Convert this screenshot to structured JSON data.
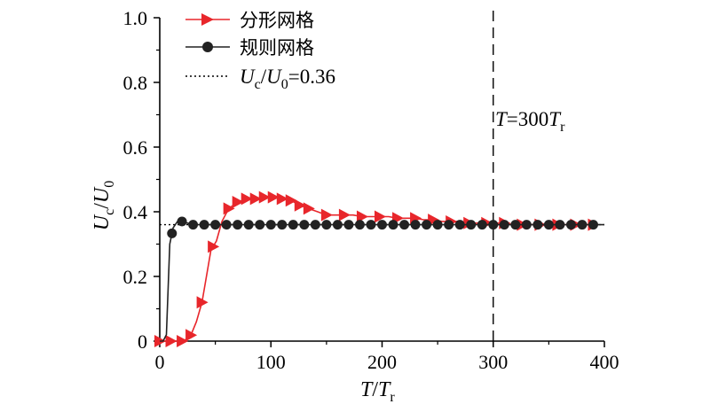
{
  "chart_data": {
    "type": "line",
    "xlabel": "T/T_r",
    "ylabel": "U_c/U_0",
    "xlim": [
      0,
      400
    ],
    "ylim": [
      0,
      1.0
    ],
    "x_ticks": [
      "0",
      "100",
      "200",
      "300",
      "400"
    ],
    "y_ticks": [
      "0",
      "0.2",
      "0.4",
      "0.6",
      "0.8",
      "1.0"
    ],
    "grid": false,
    "legend_position": "top-left",
    "series": [
      {
        "name": "分形网格",
        "color": "#e8262b",
        "marker": "triangle-right",
        "points": [
          [
            0,
            0
          ],
          [
            10,
            0
          ],
          [
            20,
            0
          ],
          [
            27,
            0.01
          ],
          [
            33,
            0.06
          ],
          [
            38,
            0.12
          ],
          [
            42,
            0.2
          ],
          [
            46,
            0.28
          ],
          [
            51,
            0.31
          ],
          [
            56,
            0.37
          ],
          [
            62,
            0.41
          ],
          [
            70,
            0.43
          ],
          [
            78,
            0.44
          ],
          [
            86,
            0.44
          ],
          [
            94,
            0.445
          ],
          [
            102,
            0.445
          ],
          [
            110,
            0.44
          ],
          [
            118,
            0.435
          ],
          [
            126,
            0.42
          ],
          [
            134,
            0.41
          ],
          [
            142,
            0.4
          ],
          [
            150,
            0.39
          ],
          [
            158,
            0.39
          ],
          [
            166,
            0.39
          ],
          [
            174,
            0.39
          ],
          [
            182,
            0.385
          ],
          [
            190,
            0.385
          ],
          [
            198,
            0.385
          ],
          [
            206,
            0.385
          ],
          [
            214,
            0.38
          ],
          [
            222,
            0.38
          ],
          [
            230,
            0.38
          ],
          [
            238,
            0.375
          ],
          [
            246,
            0.375
          ],
          [
            254,
            0.37
          ],
          [
            262,
            0.37
          ],
          [
            270,
            0.37
          ],
          [
            278,
            0.365
          ],
          [
            286,
            0.365
          ],
          [
            294,
            0.365
          ],
          [
            302,
            0.365
          ],
          [
            310,
            0.365
          ],
          [
            318,
            0.36
          ],
          [
            326,
            0.36
          ],
          [
            334,
            0.36
          ],
          [
            342,
            0.36
          ],
          [
            350,
            0.36
          ],
          [
            358,
            0.36
          ],
          [
            366,
            0.36
          ],
          [
            374,
            0.36
          ],
          [
            382,
            0.36
          ],
          [
            390,
            0.36
          ]
        ],
        "marker_x": [
          0,
          10,
          20,
          28,
          38,
          48,
          62,
          70,
          78,
          86,
          94,
          102,
          110,
          118,
          126,
          134,
          150,
          166,
          182,
          198,
          214,
          230,
          246,
          262,
          278,
          294,
          310,
          326,
          342,
          358,
          374,
          390
        ]
      },
      {
        "name": "规则网格",
        "color": "#222222",
        "marker": "circle",
        "points": [
          [
            0,
            0
          ],
          [
            3,
            0
          ],
          [
            6,
            0.02
          ],
          [
            9,
            0.3
          ],
          [
            12,
            0.35
          ],
          [
            16,
            0.37
          ],
          [
            20,
            0.37
          ],
          [
            25,
            0.365
          ],
          [
            30,
            0.36
          ],
          [
            40,
            0.36
          ],
          [
            60,
            0.36
          ],
          [
            100,
            0.36
          ],
          [
            150,
            0.36
          ],
          [
            200,
            0.36
          ],
          [
            250,
            0.36
          ],
          [
            300,
            0.36
          ],
          [
            350,
            0.36
          ],
          [
            400,
            0.36
          ]
        ],
        "marker_x": [
          11,
          20,
          30,
          40,
          50,
          60,
          70,
          80,
          90,
          100,
          110,
          120,
          130,
          140,
          150,
          160,
          170,
          180,
          190,
          200,
          210,
          220,
          230,
          240,
          250,
          260,
          270,
          280,
          290,
          300,
          310,
          320,
          330,
          340,
          350,
          360,
          370,
          380,
          390
        ]
      },
      {
        "name": "U_c/U_0=0.36",
        "color": "#000000",
        "style": "dotted",
        "y": 0.36
      }
    ],
    "vline": {
      "x": 300,
      "style": "dashed",
      "label": "T=300T_r"
    }
  },
  "legend": {
    "entry1": "分形网格",
    "entry2": "规则网格",
    "entry3_var": "U",
    "entry3_sub1": "c",
    "entry3_div": "/",
    "entry3_var2": "U",
    "entry3_sub2": "0",
    "entry3_value": "=0.36"
  },
  "annotation": {
    "var": "T",
    "eq": "=300",
    "var2": "T",
    "sub": "r"
  },
  "axes": {
    "x_var": "T",
    "x_div": "/",
    "x_var2": "T",
    "x_sub": "r",
    "y_var": "U",
    "y_sub1": "c",
    "y_div": "/",
    "y_var2": "U",
    "y_sub2": "0"
  }
}
